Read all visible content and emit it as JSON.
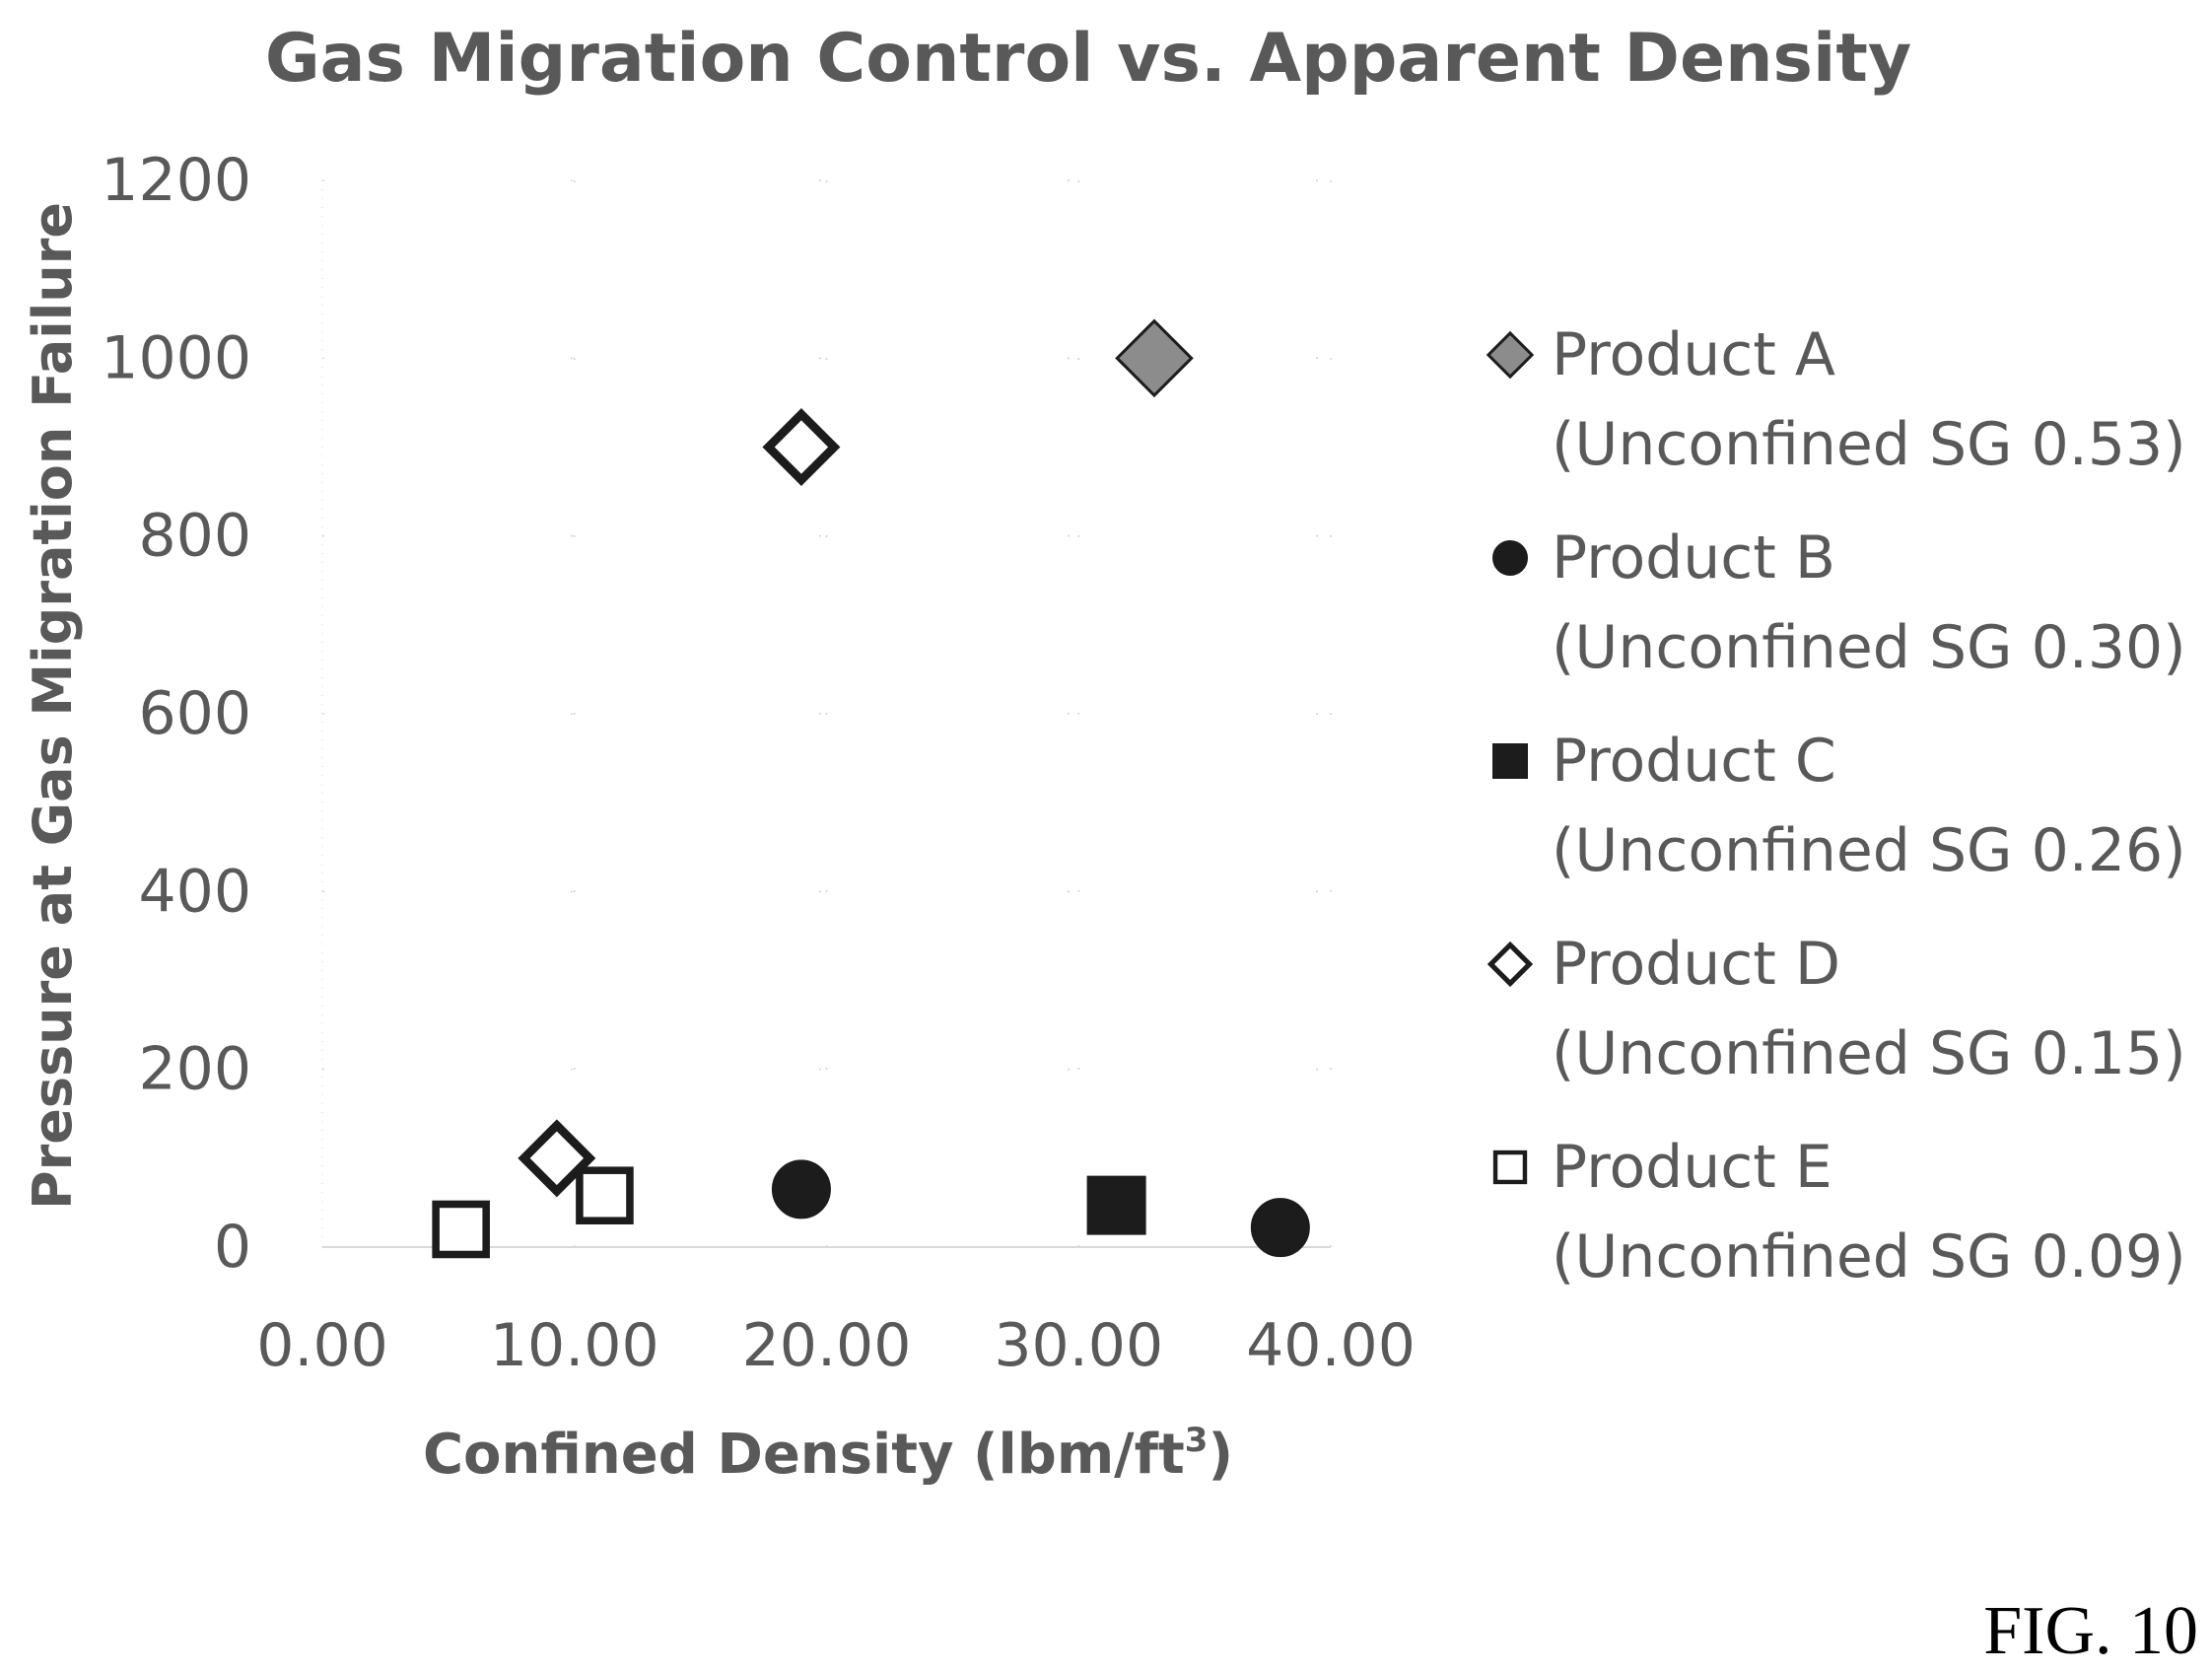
{
  "chart_data": {
    "type": "scatter",
    "title": "Gas Migration Control vs. Apparent Density",
    "xlabel": "Confined Density (lbm/ft",
    "xlabel_sup": "3",
    "xlabel_close": ")",
    "ylabel": "Pressure at Gas Migration Failure",
    "xlim": [
      0,
      40
    ],
    "ylim": [
      0,
      1200
    ],
    "x_ticks": [
      "0.00",
      "10.00",
      "20.00",
      "30.00",
      "40.00"
    ],
    "y_ticks": [
      "0",
      "200",
      "400",
      "600",
      "800",
      "1000",
      "1200"
    ],
    "grid": "dotted",
    "legend_position": "right",
    "series": [
      {
        "name": "Product A",
        "sub": "(Unconfined SG 0.53)",
        "marker": "diamond",
        "fill": "#8c8c8c",
        "points": [
          {
            "x": 33.0,
            "y": 1000
          }
        ]
      },
      {
        "name": "Product B",
        "sub": "(Unconfined SG 0.30)",
        "marker": "circle",
        "fill": "#1c1c1c",
        "points": [
          {
            "x": 19.0,
            "y": 65
          },
          {
            "x": 38.0,
            "y": 22
          }
        ]
      },
      {
        "name": "Product C",
        "sub": "(Unconfined SG 0.26)",
        "marker": "square",
        "fill": "#1c1c1c",
        "points": [
          {
            "x": 31.5,
            "y": 47
          }
        ]
      },
      {
        "name": "Product D",
        "sub": "(Unconfined SG 0.15)",
        "marker": "diamond-open",
        "fill": "#ffffff",
        "points": [
          {
            "x": 19.0,
            "y": 900
          },
          {
            "x": 9.3,
            "y": 100
          }
        ]
      },
      {
        "name": "Product E",
        "sub": "(Unconfined SG 0.09)",
        "marker": "square-open",
        "fill": "#ffffff",
        "points": [
          {
            "x": 5.5,
            "y": 20
          },
          {
            "x": 11.2,
            "y": 58
          }
        ]
      }
    ]
  },
  "figure_label": "FIG. 10"
}
